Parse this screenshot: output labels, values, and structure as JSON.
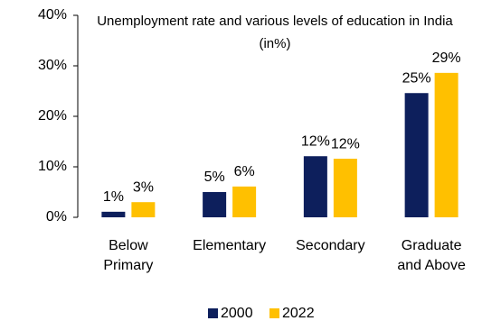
{
  "chart_data": {
    "type": "bar",
    "title": "Unemployment rate and various levels of education in India (in%)",
    "categories": [
      "Below Primary",
      "Elementary",
      "Secondary",
      "Graduate and Above"
    ],
    "series": [
      {
        "name": "2000",
        "color": "#0d1f5c",
        "values": [
          1.1,
          5.0,
          12.1,
          24.6
        ],
        "value_labels": [
          "1%",
          "5%",
          "12%",
          "25%"
        ]
      },
      {
        "name": "2022",
        "color": "#ffc000",
        "values": [
          3.0,
          6.1,
          11.6,
          28.6
        ],
        "value_labels": [
          "3%",
          "6%",
          "12%",
          "29%"
        ]
      }
    ],
    "ylim": [
      0,
      40
    ],
    "yticks": [
      {
        "value": 0,
        "label": "0%"
      },
      {
        "value": 10,
        "label": "10%"
      },
      {
        "value": 20,
        "label": "20%"
      },
      {
        "value": 30,
        "label": "30%"
      },
      {
        "value": 40,
        "label": "40%"
      }
    ],
    "legend": "bottom"
  }
}
